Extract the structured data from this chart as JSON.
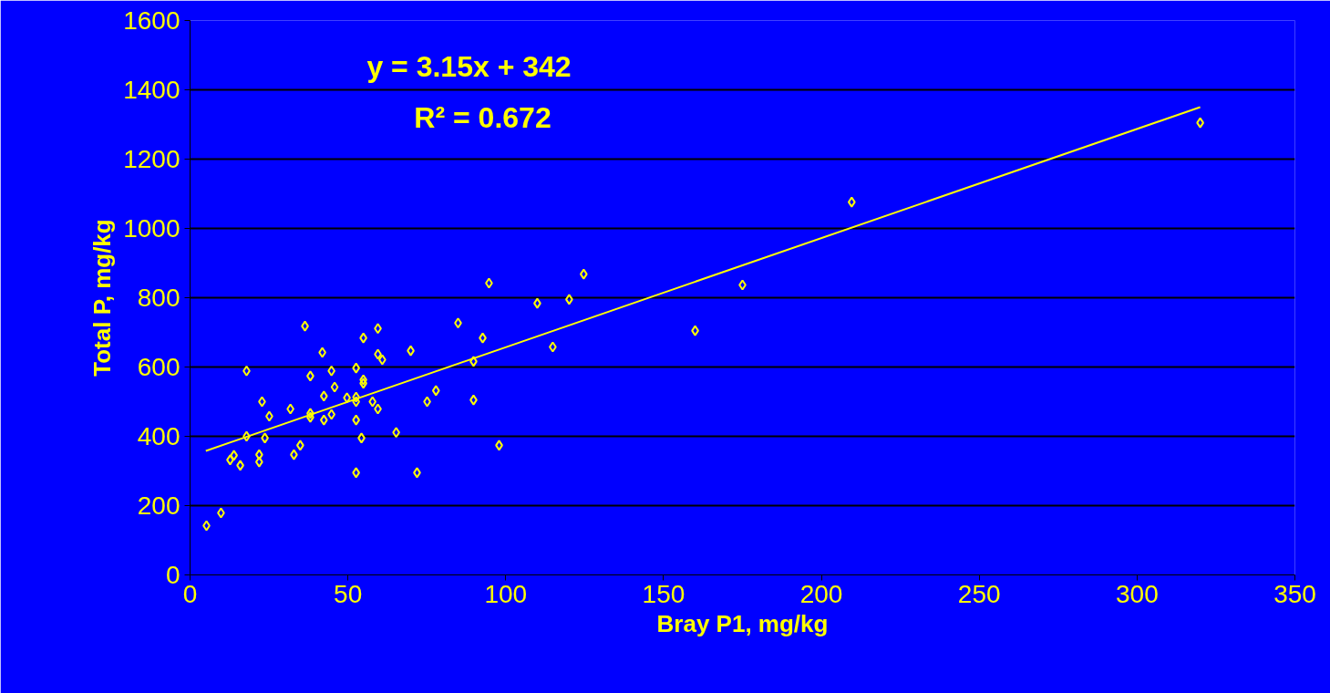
{
  "chart_data": {
    "type": "scatter",
    "xlabel": "Bray P1, mg/kg",
    "ylabel": "Total P, mg/kg",
    "annotations": [
      "y = 3.15x + 342",
      "R² = 0.672"
    ],
    "xlim": [
      0,
      350
    ],
    "xticks": [
      0,
      50,
      100,
      150,
      200,
      250,
      300,
      350
    ],
    "ylim": [
      0,
      1600
    ],
    "yticks": [
      0,
      200,
      400,
      600,
      800,
      1000,
      1200,
      1400,
      1600
    ],
    "grid": "y",
    "series": [
      {
        "color": "#ffff00",
        "marker": "diamond",
        "x": [
          36.4,
          59.5,
          84.9,
          54.9,
          92.7,
          41.9,
          59.5,
          60.9,
          69.9,
          114.9,
          17.9,
          44.8,
          52.6,
          89.8,
          38.1,
          54.9,
          54.9,
          45.8,
          77.9,
          42.4,
          49.7,
          52.6,
          52.6,
          57.8,
          75.1,
          89.8,
          22.8,
          59.5,
          31.8,
          25.1,
          38.1,
          38.1,
          44.8,
          42.4,
          52.6,
          65.3,
          17.9,
          23.7,
          54.3,
          34.9,
          97.9,
          32.9,
          21.9,
          13.9,
          12.7,
          21.9,
          15.9,
          52.6,
          71.9,
          9.8,
          5.2,
          94.7,
          124.7,
          175,
          110,
          120.1,
          160,
          209.6,
          320
        ],
        "values": [
          718,
          711,
          727,
          684,
          684,
          642,
          637,
          621,
          647,
          658,
          589,
          589,
          597,
          616,
          574,
          563,
          553,
          542,
          532,
          516,
          511,
          513,
          500,
          500,
          500,
          505,
          500,
          479,
          479,
          458,
          466,
          455,
          463,
          447,
          447,
          411,
          400,
          395,
          395,
          374,
          374,
          347,
          347,
          345,
          332,
          326,
          316,
          295,
          295,
          179,
          142,
          842,
          868,
          837,
          784,
          795,
          705,
          1076,
          1305
        ]
      },
      {
        "type": "line",
        "color": "#ffff00",
        "marker": "none",
        "x": [
          5,
          320
        ],
        "values": [
          358,
          1350
        ]
      }
    ]
  }
}
